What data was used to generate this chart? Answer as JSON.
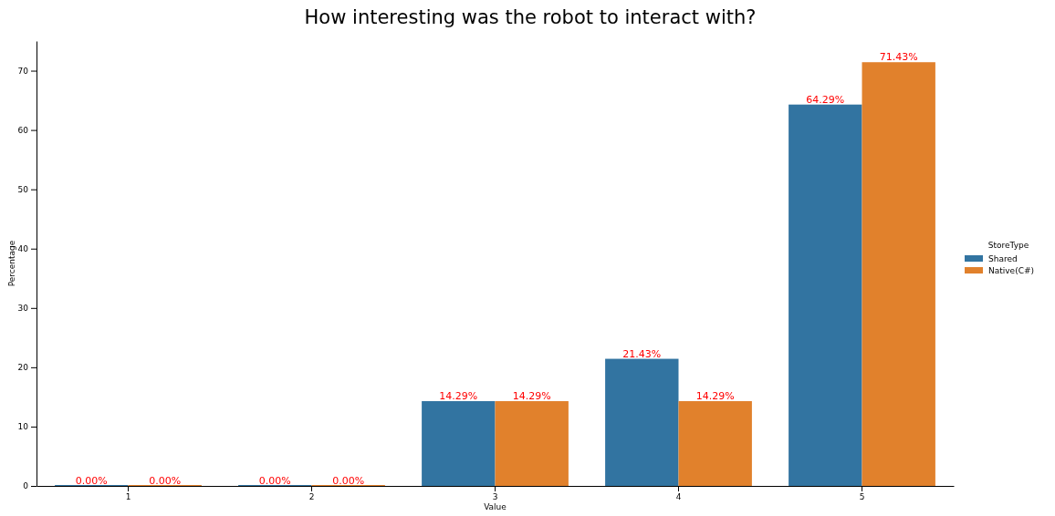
{
  "chart_data": {
    "type": "bar",
    "title": "How interesting was the robot to interact with?",
    "xlabel": "Value",
    "ylabel": "Percentage",
    "legend_title": "StoreType",
    "categories": [
      "1",
      "2",
      "3",
      "4",
      "5"
    ],
    "series": [
      {
        "name": "Shared",
        "color": "#3274a1",
        "values": [
          0,
          0,
          14.29,
          21.43,
          64.29
        ],
        "value_labels": [
          "0.00%",
          "0.00%",
          "14.29%",
          "21.43%",
          "64.29%"
        ]
      },
      {
        "name": "Native(C#)",
        "color": "#e1812c",
        "values": [
          0,
          0,
          14.29,
          14.29,
          71.43
        ],
        "value_labels": [
          "0.00%",
          "0.00%",
          "14.29%",
          "14.29%",
          "71.43%"
        ]
      }
    ],
    "ylim": [
      0,
      75
    ],
    "yticks": [
      0,
      10,
      20,
      30,
      40,
      50,
      60,
      70
    ],
    "legend": "right",
    "grid": false
  }
}
